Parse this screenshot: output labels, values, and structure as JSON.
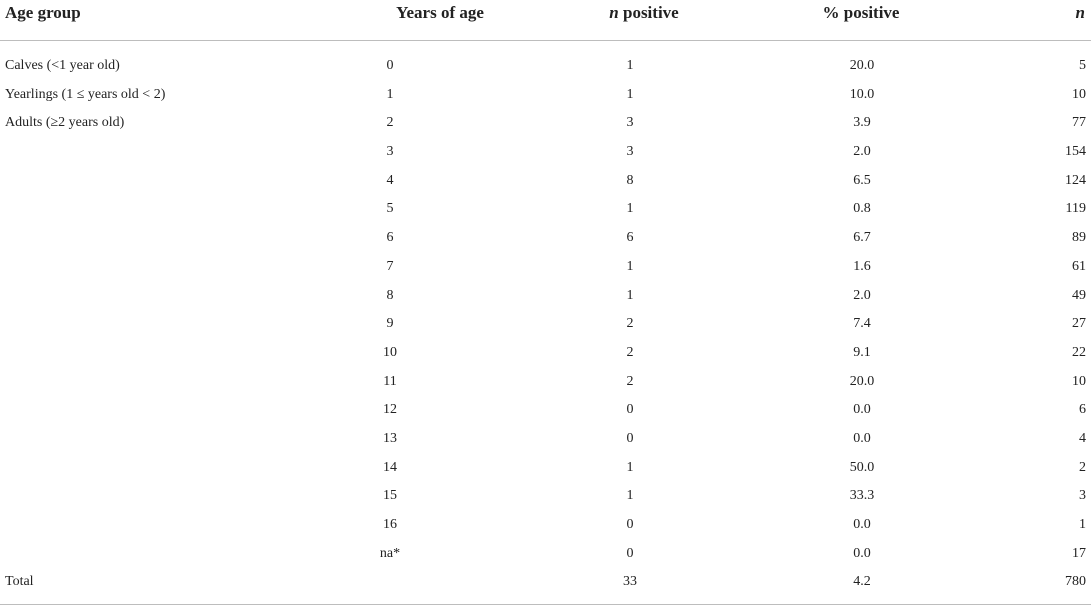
{
  "table": {
    "headers": {
      "age_group": "Age group",
      "years_of_age": "Years of age",
      "n_positive_italic": "n",
      "n_positive_rest": " positive",
      "pct_positive": "% positive",
      "n": "n"
    },
    "rows": [
      {
        "age_group": "Calves (<1 year old)",
        "years": "0",
        "n_positive": "1",
        "pct_positive": "20.0",
        "n": "5"
      },
      {
        "age_group": "Yearlings (1 ≤ years old < 2)",
        "years": "1",
        "n_positive": "1",
        "pct_positive": "10.0",
        "n": "10"
      },
      {
        "age_group": "Adults (≥2 years old)",
        "years": "2",
        "n_positive": "3",
        "pct_positive": "3.9",
        "n": "77"
      },
      {
        "age_group": "",
        "years": "3",
        "n_positive": "3",
        "pct_positive": "2.0",
        "n": "154"
      },
      {
        "age_group": "",
        "years": "4",
        "n_positive": "8",
        "pct_positive": "6.5",
        "n": "124"
      },
      {
        "age_group": "",
        "years": "5",
        "n_positive": "1",
        "pct_positive": "0.8",
        "n": "119"
      },
      {
        "age_group": "",
        "years": "6",
        "n_positive": "6",
        "pct_positive": "6.7",
        "n": "89"
      },
      {
        "age_group": "",
        "years": "7",
        "n_positive": "1",
        "pct_positive": "1.6",
        "n": "61"
      },
      {
        "age_group": "",
        "years": "8",
        "n_positive": "1",
        "pct_positive": "2.0",
        "n": "49"
      },
      {
        "age_group": "",
        "years": "9",
        "n_positive": "2",
        "pct_positive": "7.4",
        "n": "27"
      },
      {
        "age_group": "",
        "years": "10",
        "n_positive": "2",
        "pct_positive": "9.1",
        "n": "22"
      },
      {
        "age_group": "",
        "years": "11",
        "n_positive": "2",
        "pct_positive": "20.0",
        "n": "10"
      },
      {
        "age_group": "",
        "years": "12",
        "n_positive": "0",
        "pct_positive": "0.0",
        "n": "6"
      },
      {
        "age_group": "",
        "years": "13",
        "n_positive": "0",
        "pct_positive": "0.0",
        "n": "4"
      },
      {
        "age_group": "",
        "years": "14",
        "n_positive": "1",
        "pct_positive": "50.0",
        "n": "2"
      },
      {
        "age_group": "",
        "years": "15",
        "n_positive": "1",
        "pct_positive": "33.3",
        "n": "3"
      },
      {
        "age_group": "",
        "years": "16",
        "n_positive": "0",
        "pct_positive": "0.0",
        "n": "1"
      },
      {
        "age_group": "",
        "years": "na*",
        "n_positive": "0",
        "pct_positive": "0.0",
        "n": "17"
      },
      {
        "age_group": "Total",
        "years": "",
        "n_positive": "33",
        "pct_positive": "4.2",
        "n": "780"
      }
    ]
  }
}
